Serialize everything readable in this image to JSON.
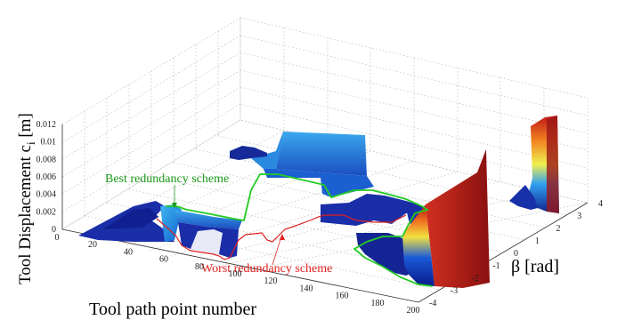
{
  "chart_data": {
    "type": "surface3d",
    "xlabel": "Tool path point number",
    "ylabel": "β [rad]",
    "zlabel": "Tool Displacement c",
    "zlabel_sub": "i",
    "zlabel_unit": " [m]",
    "x_ticks": [
      "0",
      "20",
      "40",
      "60",
      "80",
      "100",
      "120",
      "140",
      "160",
      "180",
      "200"
    ],
    "y_ticks": [
      "-4",
      "-3",
      "-2",
      "-1",
      "0",
      "1",
      "2",
      "3",
      "4"
    ],
    "z_ticks": [
      "0",
      "0.002",
      "0.004",
      "0.006",
      "0.008",
      "0.01",
      "0.012"
    ],
    "xlim": [
      0,
      200
    ],
    "ylim": [
      -4,
      4
    ],
    "zlim": [
      0,
      0.012
    ],
    "grid": true,
    "annotations": [
      {
        "text": "Best redundancy scheme",
        "color": "#1a9a1a"
      },
      {
        "text": "Worst redundancy scheme",
        "color": "#e02020"
      }
    ],
    "surface_segments": [
      {
        "x_start": 10,
        "x_end": 60,
        "y_start": -1.0,
        "y_end": 3.2,
        "z": 0.0005
      },
      {
        "x_start": 55,
        "x_end": 82,
        "y_start": -2.5,
        "y_end": 3.0,
        "z": 0.0025
      },
      {
        "x_start": 78,
        "x_end": 86,
        "y_start": 3.2,
        "y_end": 4.0,
        "z": 0.0032
      },
      {
        "x_start": 95,
        "x_end": 122,
        "y_start": 1.0,
        "y_end": 3.8,
        "z": 0.0085
      },
      {
        "x_start": 122,
        "x_end": 170,
        "y_start": -1.5,
        "y_end": 3.0,
        "z": 0.0005
      },
      {
        "x_start": 150,
        "x_end": 185,
        "y_start": -3.8,
        "y_end": 2.0,
        "z": 0.001
      },
      {
        "x_start": 170,
        "x_end": 200,
        "y_start": -3.8,
        "y_end": 3.5,
        "z": 0.012
      }
    ],
    "best_scheme_path": [
      {
        "x": 62,
        "y": 0.7,
        "z": 0.0018
      },
      {
        "x": 82,
        "y": 1.0,
        "z": 0.0026
      },
      {
        "x": 95,
        "y": 1.5,
        "z": 0.0031
      },
      {
        "x": 110,
        "y": 1.2,
        "z": 0.0032
      },
      {
        "x": 122,
        "y": 1.3,
        "z": 0.003
      },
      {
        "x": 140,
        "y": 1.1,
        "z": 0.0008
      },
      {
        "x": 160,
        "y": 0.9,
        "z": 0.0004
      },
      {
        "x": 178,
        "y": -3.6,
        "z": 0.0022
      }
    ],
    "worst_scheme_path": [
      {
        "x": 50,
        "y": -0.6,
        "z": 0.0003
      },
      {
        "x": 65,
        "y": -2.2,
        "z": 0.0001
      },
      {
        "x": 95,
        "y": -2.5,
        "z": 0.0001
      },
      {
        "x": 110,
        "y": -1.5,
        "z": 0.0004
      },
      {
        "x": 130,
        "y": -0.5,
        "z": 0.0005
      },
      {
        "x": 150,
        "y": -0.2,
        "z": 0.0012
      },
      {
        "x": 175,
        "y": -3.5,
        "z": 0.0003
      }
    ]
  }
}
